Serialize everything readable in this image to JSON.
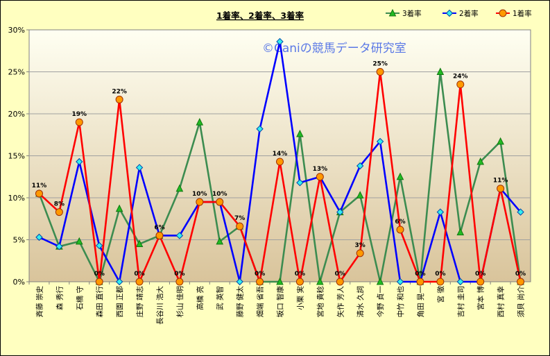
{
  "chart_data": {
    "type": "line",
    "title": "1着率、2着率、3着率",
    "watermark": "©Caniの競馬データ研究室",
    "categories": [
      "斉藤 崇史",
      "森 秀行",
      "石橋 守",
      "森田 直行",
      "西園 正都",
      "庄野 靖志",
      "長谷川 浩大",
      "杉山 佳明",
      "高橋 亮",
      "武 英智",
      "藤野 健太",
      "畑端 省吾",
      "坂口 智康",
      "小栗 実",
      "宮地 貴稔",
      "矢作 芳人",
      "清水 久詞",
      "今野 貞一",
      "中竹 和也",
      "角田 晃一",
      "宮 徹",
      "吉村 圭司",
      "宮本 博",
      "西村 真幸",
      "須貝 尚介"
    ],
    "ylim": [
      0,
      30
    ],
    "yticks": [
      "0%",
      "5%",
      "10%",
      "15%",
      "20%",
      "25%",
      "30%"
    ],
    "grid": true,
    "legend_position": "top-right",
    "series": [
      {
        "name": "3着率",
        "color": "#3c8c50",
        "marker": "triangle",
        "marker_color": "#22bb22",
        "values": [
          10.5,
          4.2,
          4.8,
          0,
          8.7,
          4.5,
          5.5,
          11.1,
          19.0,
          4.8,
          6.6,
          0,
          0,
          17.6,
          0,
          8.3,
          10.3,
          0,
          12.5,
          0,
          25.0,
          5.9,
          14.3,
          16.7,
          0
        ]
      },
      {
        "name": "2着率",
        "color": "#0000ff",
        "marker": "diamond",
        "marker_color": "#33eeee",
        "values": [
          5.3,
          4.2,
          14.3,
          4.3,
          0,
          13.6,
          5.5,
          5.5,
          9.5,
          9.5,
          0,
          18.2,
          28.6,
          11.8,
          12.5,
          8.3,
          13.8,
          16.7,
          0,
          0,
          8.3,
          0,
          0,
          11.1,
          8.3
        ]
      },
      {
        "name": "1着率",
        "color": "#ff0000",
        "marker": "circle",
        "marker_color": "#ff9900",
        "values": [
          10.5,
          8.3,
          19.0,
          0,
          21.7,
          0,
          5.5,
          0,
          9.5,
          9.5,
          6.6,
          0,
          14.3,
          0,
          12.5,
          0,
          3.4,
          25.0,
          6.2,
          0,
          0,
          23.5,
          0,
          11.1,
          0
        ],
        "labels": [
          "11%",
          "8%",
          "19%",
          "0%",
          "22%",
          "0%",
          "6%",
          "0%",
          "10%",
          "10%",
          "7%",
          "0%",
          "14%",
          "0%",
          "13%",
          "0%",
          "3%",
          "25%",
          "6%",
          "0%",
          "0%",
          "24%",
          "0%",
          "11%",
          "0%"
        ]
      }
    ]
  }
}
